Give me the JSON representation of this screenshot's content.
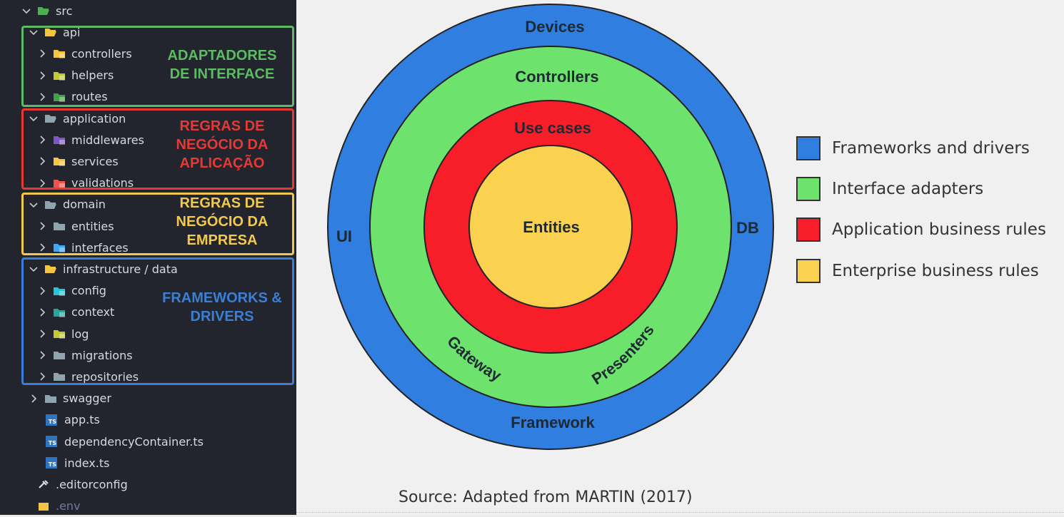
{
  "explorer": {
    "items": [
      {
        "label": "src",
        "depth": 0,
        "type": "folder-open",
        "icon": "src-folder-icon",
        "color": "#4caf50"
      },
      {
        "label": "api",
        "depth": 1,
        "type": "folder-open",
        "icon": "api-folder-icon",
        "color": "#f5c542"
      },
      {
        "label": "controllers",
        "depth": 2,
        "type": "folder",
        "icon": "controllers-folder-icon",
        "color": "#f5c542"
      },
      {
        "label": "helpers",
        "depth": 2,
        "type": "folder",
        "icon": "helpers-folder-icon",
        "color": "#c0ca33"
      },
      {
        "label": "routes",
        "depth": 2,
        "type": "folder",
        "icon": "routes-folder-icon",
        "color": "#43a047"
      },
      {
        "label": "application",
        "depth": 1,
        "type": "folder-open",
        "icon": "application-folder-icon",
        "color": "#90a4ae"
      },
      {
        "label": "middlewares",
        "depth": 2,
        "type": "folder",
        "icon": "middlewares-folder-icon",
        "color": "#7e57c2"
      },
      {
        "label": "services",
        "depth": 2,
        "type": "folder",
        "icon": "services-folder-icon",
        "color": "#f5c542"
      },
      {
        "label": "validations",
        "depth": 2,
        "type": "folder",
        "icon": "validations-folder-icon",
        "color": "#ef5350"
      },
      {
        "label": "domain",
        "depth": 1,
        "type": "folder-open",
        "icon": "domain-folder-icon",
        "color": "#90a4ae"
      },
      {
        "label": "entities",
        "depth": 2,
        "type": "folder",
        "icon": "entities-folder-icon",
        "color": "#90a4ae"
      },
      {
        "label": "interfaces",
        "depth": 2,
        "type": "folder",
        "icon": "interfaces-folder-icon",
        "color": "#42a5f5"
      },
      {
        "label": "infrastructure / data",
        "depth": 1,
        "type": "folder-open",
        "icon": "infrastructure-folder-icon",
        "color": "#f5c542"
      },
      {
        "label": "config",
        "depth": 2,
        "type": "folder",
        "icon": "config-folder-icon",
        "color": "#26c6da"
      },
      {
        "label": "context",
        "depth": 2,
        "type": "folder",
        "icon": "context-folder-icon",
        "color": "#26a69a"
      },
      {
        "label": "log",
        "depth": 2,
        "type": "folder",
        "icon": "log-folder-icon",
        "color": "#c0ca33"
      },
      {
        "label": "migrations",
        "depth": 2,
        "type": "folder",
        "icon": "migrations-folder-icon",
        "color": "#90a4ae"
      },
      {
        "label": "repositories",
        "depth": 2,
        "type": "folder",
        "icon": "repositories-folder-icon",
        "color": "#90a4ae"
      },
      {
        "label": "swagger",
        "depth": 1,
        "type": "folder",
        "icon": "swagger-folder-icon",
        "color": "#90a4ae"
      },
      {
        "label": "app.ts",
        "depth": 1,
        "type": "ts",
        "icon": "typescript-file-icon",
        "color": "#2f74c0"
      },
      {
        "label": "dependencyContainer.ts",
        "depth": 1,
        "type": "ts",
        "icon": "typescript-file-icon",
        "color": "#2f74c0"
      },
      {
        "label": "index.ts",
        "depth": 1,
        "type": "ts",
        "icon": "typescript-file-icon",
        "color": "#2f74c0"
      },
      {
        "label": ".editorconfig",
        "depth": 0,
        "type": "config",
        "icon": "editorconfig-file-icon",
        "color": "#e0e0e0"
      },
      {
        "label": ".env",
        "depth": 0,
        "type": "env",
        "icon": "env-file-icon",
        "color": "#f5c542"
      }
    ],
    "ts_badge": "TS"
  },
  "annotations": [
    {
      "text": "ADAPTADORES DE INTERFACE",
      "lines": [
        "ADAPTADORES",
        "DE INTERFACE"
      ],
      "color": "#5dbb63"
    },
    {
      "text": "REGRAS DE NEGÓCIO DA APLICAÇÃO",
      "lines": [
        "REGRAS DE",
        "NEGÓCIO DA",
        "APLICAÇÃO"
      ],
      "color": "#e53935"
    },
    {
      "text": "REGRAS DE NEGÓCIO DA EMPRESA",
      "lines": [
        "REGRAS DE",
        "NEGÓCIO DA",
        "EMPRESA"
      ],
      "color": "#f2c94c"
    },
    {
      "text": "FRAMEWORKS & DRIVERS",
      "lines": [
        "FRAMEWORKS &",
        "DRIVERS"
      ],
      "color": "#3a7fd5"
    }
  ],
  "diagram": {
    "layers": [
      {
        "name": "Devices",
        "color": "#2f7ee0"
      },
      {
        "name": "Controllers",
        "color": "#6de36d"
      },
      {
        "name": "Use cases",
        "color": "#f71e2a"
      },
      {
        "name": "Entities",
        "color": "#fbd150"
      }
    ],
    "labels": {
      "ui": "UI",
      "db": "DB",
      "framework": "Framework",
      "gateway": "Gateway",
      "presenters": "Presenters"
    }
  },
  "legend": [
    {
      "label": "Frameworks and drivers",
      "color": "#2f7ee0"
    },
    {
      "label": "Interface adapters",
      "color": "#6de36d"
    },
    {
      "label": "Application business rules",
      "color": "#f71e2a"
    },
    {
      "label": "Enterprise business rules",
      "color": "#fbd150"
    }
  ],
  "caption": "Source: Adapted from MARTIN (2017)"
}
